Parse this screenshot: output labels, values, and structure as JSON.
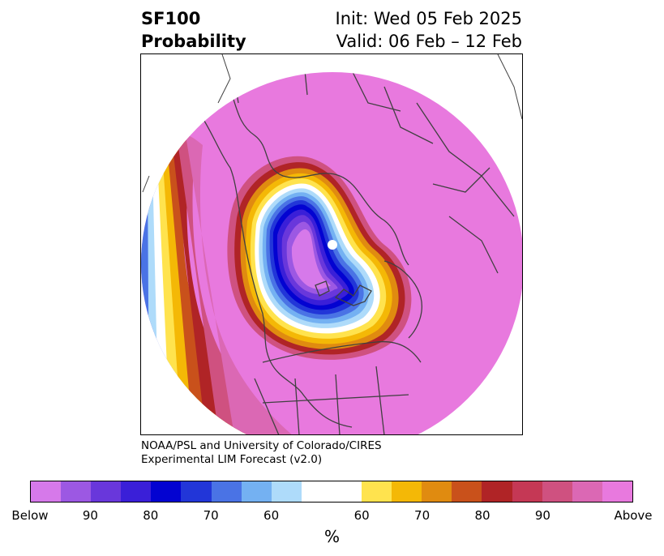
{
  "header": {
    "title_line1": "SF100",
    "title_line2": "Probability",
    "init_text": "Init: Wed 05 Feb 2025",
    "valid_text": "Valid: 06 Feb – 12 Feb"
  },
  "credit": {
    "line1": "NOAA/PSL and University of Colorado/CIRES",
    "line2": "Experimental LIM Forecast (v2.0)"
  },
  "colorbar": {
    "unit_label": "%",
    "colors": [
      "#d679ea",
      "#9c58e3",
      "#6937db",
      "#3a1fd8",
      "#0303d1",
      "#2236d8",
      "#4a73e5",
      "#74b1f2",
      "#aedbfa",
      "#ffffff",
      "#ffe34e",
      "#f4b806",
      "#e08b10",
      "#c9511b",
      "#b02426",
      "#c53855",
      "#cf5180",
      "#db68b4",
      "#e879de"
    ],
    "tick_labels": [
      "Below",
      "90",
      "80",
      "70",
      "60",
      "60",
      "70",
      "80",
      "90",
      "Above"
    ]
  },
  "map": {
    "background_color": "#e879de",
    "land_outline_color": "#404040"
  }
}
